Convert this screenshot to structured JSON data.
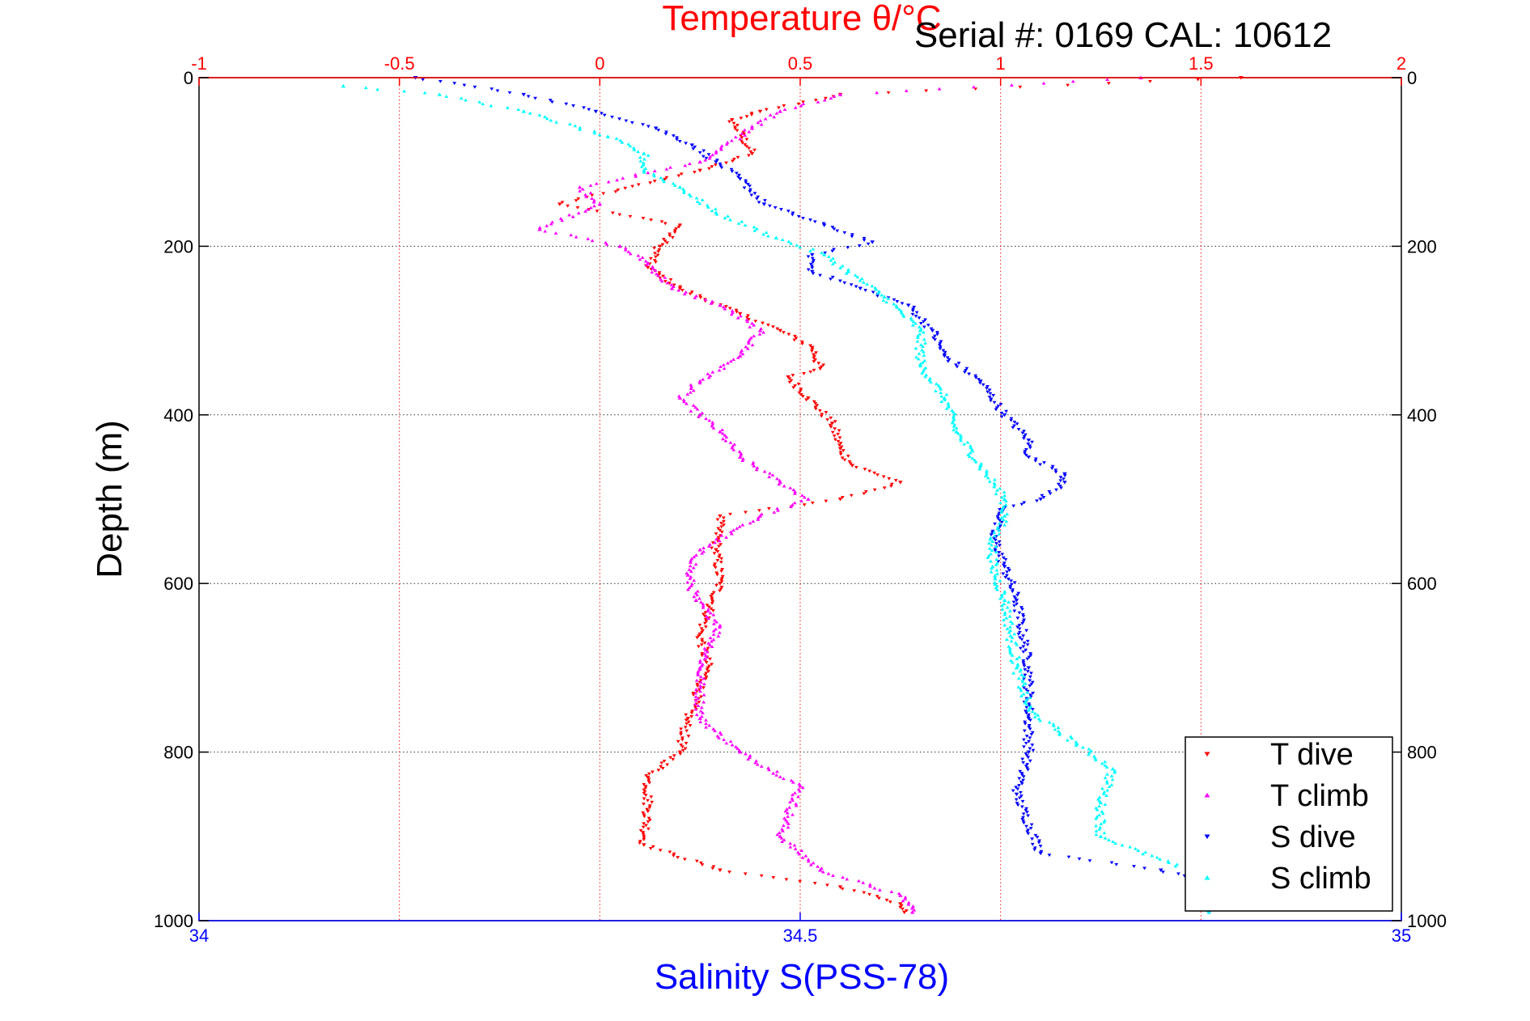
{
  "chart_data": {
    "type": "scatter",
    "title": "Temperature θ/°C",
    "subtitle": "Serial #: 0169 CAL: 10612",
    "ylabel": "Depth (m)",
    "xlabel_bottom": "Salinity S(PSS-78)",
    "xlabel_top": "Temperature θ/°C",
    "ylim": [
      0,
      1000
    ],
    "y_reversed": true,
    "x_top_lim": [
      -1,
      2
    ],
    "x_bottom_lim": [
      34,
      35
    ],
    "y_ticks": [
      "0",
      "200",
      "400",
      "600",
      "800",
      "1000"
    ],
    "x_top_ticks": [
      "-1",
      "-0.5",
      "0",
      "0.5",
      "1",
      "1.5",
      "2"
    ],
    "x_bottom_ticks": [
      "34",
      "34.5",
      "35"
    ],
    "grid": true,
    "legend_position": "bottom-right",
    "colors": {
      "temperature_axis": "#ff0000",
      "salinity_axis": "#0000ff",
      "t_dive": "#ff0000",
      "t_climb": "#ff00ff",
      "s_dive": "#0000ff",
      "s_climb": "#00ffff"
    },
    "series": [
      {
        "name": "T dive",
        "axis": "temperature",
        "color": "#ff0000",
        "marker": "triangle-down",
        "depth": [
          0,
          20,
          40,
          50,
          90,
          110,
          150,
          175,
          200,
          225,
          250,
          280,
          300,
          320,
          345,
          355,
          380,
          410,
          440,
          460,
          480,
          500,
          520,
          560,
          600,
          660,
          700,
          760,
          800,
          830,
          870,
          910,
          940,
          960,
          980,
          990
        ],
        "values": [
          1.6,
          0.6,
          0.4,
          0.33,
          0.38,
          0.25,
          -0.1,
          0.2,
          0.15,
          0.12,
          0.2,
          0.35,
          0.45,
          0.53,
          0.55,
          0.47,
          0.52,
          0.58,
          0.6,
          0.63,
          0.75,
          0.6,
          0.3,
          0.29,
          0.3,
          0.25,
          0.27,
          0.22,
          0.2,
          0.12,
          0.12,
          0.11,
          0.3,
          0.6,
          0.75,
          0.76
        ]
      },
      {
        "name": "T climb",
        "axis": "temperature",
        "color": "#ff00ff",
        "marker": "triangle-up",
        "depth": [
          0,
          20,
          40,
          60,
          100,
          130,
          150,
          180,
          200,
          220,
          250,
          270,
          300,
          330,
          360,
          380,
          400,
          420,
          450,
          480,
          500,
          520,
          560,
          590,
          620,
          650,
          700,
          760,
          800,
          840,
          900,
          940,
          970,
          985,
          990
        ],
        "values": [
          1.35,
          0.6,
          0.45,
          0.38,
          0.25,
          -0.05,
          0.0,
          -0.15,
          0.05,
          0.12,
          0.18,
          0.3,
          0.4,
          0.35,
          0.25,
          0.2,
          0.25,
          0.3,
          0.35,
          0.45,
          0.52,
          0.4,
          0.25,
          0.22,
          0.24,
          0.3,
          0.25,
          0.25,
          0.35,
          0.5,
          0.45,
          0.55,
          0.75,
          0.78,
          0.78
        ]
      },
      {
        "name": "S dive",
        "axis": "salinity",
        "color": "#0000ff",
        "marker": "triangle-down",
        "depth": [
          0,
          20,
          40,
          60,
          80,
          100,
          120,
          150,
          175,
          195,
          210,
          230,
          250,
          270,
          300,
          330,
          360,
          400,
          430,
          450,
          470,
          480,
          500,
          510,
          540,
          580,
          620,
          700,
          760,
          800,
          850,
          920,
          940,
          960,
          990
        ],
        "values": [
          34.18,
          34.27,
          34.33,
          34.38,
          34.41,
          34.43,
          34.45,
          34.47,
          34.52,
          34.56,
          34.51,
          34.51,
          34.55,
          34.59,
          34.61,
          34.62,
          34.65,
          34.67,
          34.69,
          34.69,
          34.72,
          34.72,
          34.7,
          34.67,
          34.66,
          34.67,
          34.68,
          34.69,
          34.69,
          34.69,
          34.68,
          34.7,
          34.8,
          34.85,
          34.84
        ]
      },
      {
        "name": "S climb",
        "axis": "salinity",
        "color": "#00ffff",
        "marker": "triangle-up",
        "depth": [
          10,
          20,
          40,
          70,
          90,
          110,
          130,
          160,
          190,
          210,
          230,
          260,
          300,
          340,
          380,
          420,
          460,
          500,
          520,
          550,
          580,
          620,
          700,
          750,
          790,
          820,
          860,
          900,
          950,
          975,
          990
        ],
        "values": [
          34.12,
          34.2,
          34.27,
          34.34,
          34.37,
          34.37,
          34.4,
          34.43,
          34.48,
          34.52,
          34.54,
          34.57,
          34.6,
          34.6,
          34.62,
          34.63,
          34.65,
          34.67,
          34.67,
          34.66,
          34.66,
          34.67,
          34.68,
          34.69,
          34.73,
          34.76,
          34.75,
          34.75,
          34.84,
          34.84,
          34.84
        ]
      }
    ]
  }
}
